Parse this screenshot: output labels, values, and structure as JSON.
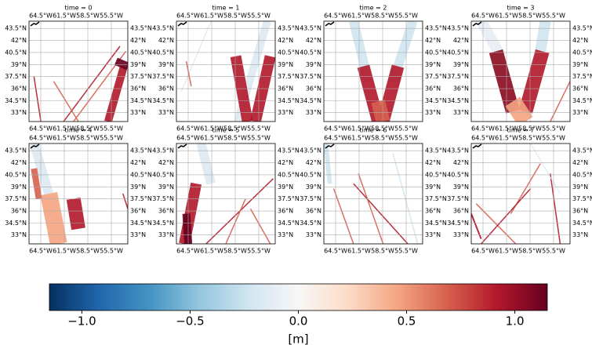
{
  "chart_data": {
    "type": "map-grid",
    "panels": [
      {
        "title": "time = 0"
      },
      {
        "title": "time = 1"
      },
      {
        "title": "time = 2"
      },
      {
        "title": "time = 3"
      },
      {
        "title": "time = 4"
      },
      {
        "title": "time = 5"
      },
      {
        "title": "time = 6"
      },
      {
        "title": "time = 7"
      }
    ],
    "xlim": [
      -66,
      -53.4
    ],
    "ylim": [
      31.9,
      44.4
    ],
    "xticks": [
      {
        "value": -64.5,
        "label": "64.5°W"
      },
      {
        "value": -61.5,
        "label": "61.5°W"
      },
      {
        "value": -58.5,
        "label": "58.5°W"
      },
      {
        "value": -55.5,
        "label": "55.5°W"
      }
    ],
    "yticks": [
      {
        "value": 43.5,
        "label": "43.5°N"
      },
      {
        "value": 42,
        "label": "42°N"
      },
      {
        "value": 40.5,
        "label": "40.5°N"
      },
      {
        "value": 39,
        "label": "39°N"
      },
      {
        "value": 37.5,
        "label": "37.5°N"
      },
      {
        "value": 36,
        "label": "36°N"
      },
      {
        "value": 34.5,
        "label": "34.5°N"
      },
      {
        "value": 33,
        "label": "33°N"
      }
    ],
    "colorbar": {
      "type": "colorbar",
      "label": "[m]",
      "xlim": [
        -1.15,
        1.15
      ],
      "xticks": [
        {
          "value": -1,
          "label": "−1.0"
        },
        {
          "value": -0.5,
          "label": "−0.5"
        },
        {
          "value": 0,
          "label": "0.0"
        },
        {
          "value": 0.5,
          "label": "0.5"
        },
        {
          "value": 1,
          "label": "1.0"
        }
      ],
      "colors": [
        "#053061",
        "#2166ac",
        "#4393c3",
        "#92c5de",
        "#d1e5f0",
        "#f7f7f7",
        "#fddbc7",
        "#f4a582",
        "#d6604d",
        "#b2182b",
        "#67001f"
      ]
    }
  }
}
